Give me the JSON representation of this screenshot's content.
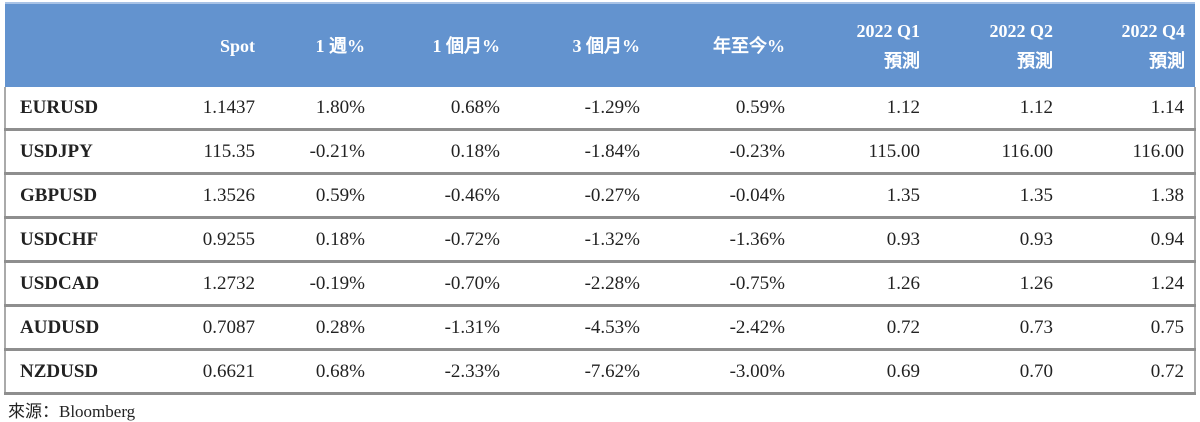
{
  "table": {
    "header": [
      [
        "Spot"
      ],
      [
        "1 週%"
      ],
      [
        "1 個月%"
      ],
      [
        "3 個月%"
      ],
      [
        "年至今%"
      ],
      [
        "2022 Q1",
        "預測"
      ],
      [
        "2022 Q2",
        "預測"
      ],
      [
        "2022 Q4",
        "預測"
      ]
    ],
    "rows": [
      [
        "EURUSD",
        "1.1437",
        "1.80%",
        "0.68%",
        "-1.29%",
        "0.59%",
        "1.12",
        "1.12",
        "1.14"
      ],
      [
        "USDJPY",
        "115.35",
        "-0.21%",
        "0.18%",
        "-1.84%",
        "-0.23%",
        "115.00",
        "116.00",
        "116.00"
      ],
      [
        "GBPUSD",
        "1.3526",
        "0.59%",
        "-0.46%",
        "-0.27%",
        "-0.04%",
        "1.35",
        "1.35",
        "1.38"
      ],
      [
        "USDCHF",
        "0.9255",
        "0.18%",
        "-0.72%",
        "-1.32%",
        "-1.36%",
        "0.93",
        "0.93",
        "0.94"
      ],
      [
        "USDCAD",
        "1.2732",
        "-0.19%",
        "-0.70%",
        "-2.28%",
        "-0.75%",
        "1.26",
        "1.26",
        "1.24"
      ],
      [
        "AUDUSD",
        "0.7087",
        "0.28%",
        "-1.31%",
        "-4.53%",
        "-2.42%",
        "0.72",
        "0.73",
        "0.75"
      ],
      [
        "NZDUSD",
        "0.6621",
        "0.68%",
        "-2.33%",
        "-7.62%",
        "-3.00%",
        "0.69",
        "0.70",
        "0.72"
      ]
    ]
  },
  "source": "來源：Bloomberg"
}
